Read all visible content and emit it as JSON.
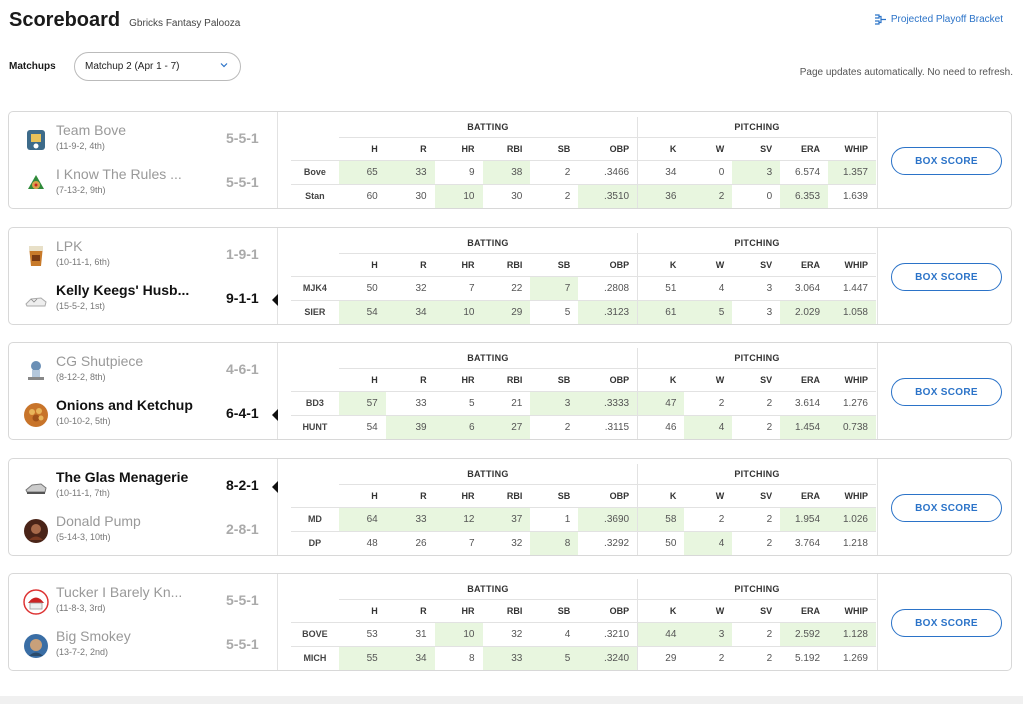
{
  "header": {
    "title": "Scoreboard",
    "league": "Gbricks Fantasy Palooza",
    "bracket_link": "Projected Playoff Bracket"
  },
  "controls": {
    "matchups_label": "Matchups",
    "selected_matchup": "Matchup 2 (Apr 1 - 7)",
    "auto_note": "Page updates automatically. No need to refresh."
  },
  "labels": {
    "batting": "BATTING",
    "pitching": "PITCHING",
    "box_score": "BOX SCORE"
  },
  "columns": [
    "H",
    "R",
    "HR",
    "RBI",
    "SB",
    "OBP",
    "K",
    "W",
    "SV",
    "ERA",
    "WHIP"
  ],
  "colors": {
    "accent": "#2b73c8",
    "highlight": "#e8f6df"
  },
  "matchups": [
    {
      "teams": [
        {
          "name": "Team Bove",
          "record": "(11-9-2, 4th)",
          "score": "5-5-1",
          "winner": false,
          "avatar": "team-bove-logo"
        },
        {
          "name": "I Know The Rules ...",
          "record": "(7-13-2, 9th)",
          "score": "5-5-1",
          "winner": false,
          "avatar": "rules-team-logo"
        }
      ],
      "rows": [
        {
          "abbr": "Bove",
          "values": [
            "65",
            "33",
            "9",
            "38",
            "2",
            ".3466",
            "34",
            "0",
            "3",
            "6.574",
            "1.357"
          ],
          "hl": [
            true,
            true,
            false,
            true,
            false,
            false,
            false,
            false,
            true,
            false,
            true
          ]
        },
        {
          "abbr": "Stan",
          "values": [
            "60",
            "30",
            "10",
            "30",
            "2",
            ".3510",
            "36",
            "2",
            "0",
            "6.353",
            "1.639"
          ],
          "hl": [
            false,
            false,
            true,
            false,
            false,
            true,
            true,
            true,
            false,
            true,
            false
          ]
        }
      ]
    },
    {
      "teams": [
        {
          "name": "LPK",
          "record": "(10-11-1, 6th)",
          "score": "1-9-1",
          "winner": false,
          "avatar": "lpk-logo"
        },
        {
          "name": "Kelly Keegs' Husb...",
          "record": "(15-5-2, 1st)",
          "score": "9-1-1",
          "winner": true,
          "avatar": "keegs-logo"
        }
      ],
      "rows": [
        {
          "abbr": "MJK4",
          "values": [
            "50",
            "32",
            "7",
            "22",
            "7",
            ".2808",
            "51",
            "4",
            "3",
            "3.064",
            "1.447"
          ],
          "hl": [
            false,
            false,
            false,
            false,
            true,
            false,
            false,
            false,
            false,
            false,
            false
          ]
        },
        {
          "abbr": "SIER",
          "values": [
            "54",
            "34",
            "10",
            "29",
            "5",
            ".3123",
            "61",
            "5",
            "3",
            "2.029",
            "1.058"
          ],
          "hl": [
            true,
            true,
            true,
            true,
            false,
            true,
            true,
            true,
            false,
            true,
            true
          ]
        }
      ]
    },
    {
      "teams": [
        {
          "name": "CG Shutpiece",
          "record": "(8-12-2, 8th)",
          "score": "4-6-1",
          "winner": false,
          "avatar": "shutpiece-logo"
        },
        {
          "name": "Onions and Ketchup",
          "record": "(10-10-2, 5th)",
          "score": "6-4-1",
          "winner": true,
          "avatar": "onions-logo"
        }
      ],
      "rows": [
        {
          "abbr": "BD3",
          "values": [
            "57",
            "33",
            "5",
            "21",
            "3",
            ".3333",
            "47",
            "2",
            "2",
            "3.614",
            "1.276"
          ],
          "hl": [
            true,
            false,
            false,
            false,
            true,
            true,
            true,
            false,
            false,
            false,
            false
          ]
        },
        {
          "abbr": "HUNT",
          "values": [
            "54",
            "39",
            "6",
            "27",
            "2",
            ".3115",
            "46",
            "4",
            "2",
            "1.454",
            "0.738"
          ],
          "hl": [
            false,
            true,
            true,
            true,
            false,
            false,
            false,
            true,
            false,
            true,
            true
          ]
        }
      ]
    },
    {
      "teams": [
        {
          "name": "The Glas Menagerie",
          "record": "(10-11-1, 7th)",
          "score": "8-2-1",
          "winner": true,
          "avatar": "glas-logo"
        },
        {
          "name": "Donald Pump",
          "record": "(5-14-3, 10th)",
          "score": "2-8-1",
          "winner": false,
          "avatar": "pump-logo"
        }
      ],
      "rows": [
        {
          "abbr": "MD",
          "values": [
            "64",
            "33",
            "12",
            "37",
            "1",
            ".3690",
            "58",
            "2",
            "2",
            "1.954",
            "1.026"
          ],
          "hl": [
            true,
            true,
            true,
            true,
            false,
            true,
            true,
            false,
            false,
            true,
            true
          ]
        },
        {
          "abbr": "DP",
          "values": [
            "48",
            "26",
            "7",
            "32",
            "8",
            ".3292",
            "50",
            "4",
            "2",
            "3.764",
            "1.218"
          ],
          "hl": [
            false,
            false,
            false,
            false,
            true,
            false,
            false,
            true,
            false,
            false,
            false
          ]
        }
      ]
    },
    {
      "teams": [
        {
          "name": "Tucker I Barely Kn...",
          "record": "(11-8-3, 3rd)",
          "score": "5-5-1",
          "winner": false,
          "avatar": "tucker-logo"
        },
        {
          "name": "Big Smokey",
          "record": "(13-7-2, 2nd)",
          "score": "5-5-1",
          "winner": false,
          "avatar": "smokey-logo"
        }
      ],
      "rows": [
        {
          "abbr": "BOVE",
          "values": [
            "53",
            "31",
            "10",
            "32",
            "4",
            ".3210",
            "44",
            "3",
            "2",
            "2.592",
            "1.128"
          ],
          "hl": [
            false,
            false,
            true,
            false,
            false,
            false,
            true,
            true,
            false,
            true,
            true
          ]
        },
        {
          "abbr": "MICH",
          "values": [
            "55",
            "34",
            "8",
            "33",
            "5",
            ".3240",
            "29",
            "2",
            "2",
            "5.192",
            "1.269"
          ],
          "hl": [
            true,
            true,
            false,
            true,
            true,
            true,
            false,
            false,
            false,
            false,
            false
          ]
        }
      ]
    }
  ]
}
